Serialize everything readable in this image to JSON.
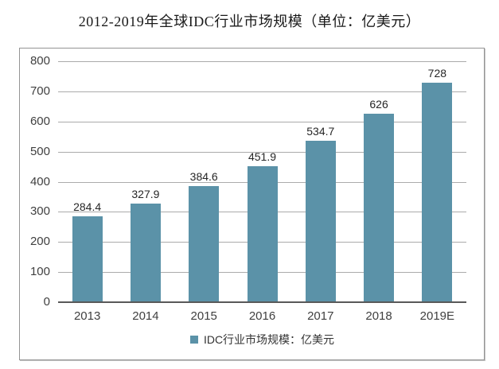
{
  "title": "2012-2019年全球IDC行业市场规模（单位：亿美元）",
  "legend": {
    "label": "IDC行业市场规模：亿美元"
  },
  "colors": {
    "bar": "#5B92A8",
    "gridline": "#ABABAB",
    "axis_line": "#595959",
    "tick_text": "#404040",
    "value_text": "#262626",
    "title_text": "#1A1A1A",
    "legend_text": "#333333"
  },
  "chart_data": {
    "type": "bar",
    "title": "2012-2019年全球IDC行业市场规模（单位：亿美元）",
    "categories": [
      "2013",
      "2014",
      "2015",
      "2016",
      "2017",
      "2018",
      "2019E"
    ],
    "values": [
      284.4,
      327.9,
      384.6,
      451.9,
      534.7,
      626,
      728
    ],
    "value_labels": [
      "284.4",
      "327.9",
      "384.6",
      "451.9",
      "534.7",
      "626",
      "728"
    ],
    "series_name": "IDC行业市场规模：亿美元",
    "xlabel": "",
    "ylabel": "",
    "ylim": [
      0,
      800
    ],
    "yticks": [
      0,
      100,
      200,
      300,
      400,
      500,
      600,
      700,
      800
    ],
    "grid": true,
    "legend_position": "bottom"
  }
}
